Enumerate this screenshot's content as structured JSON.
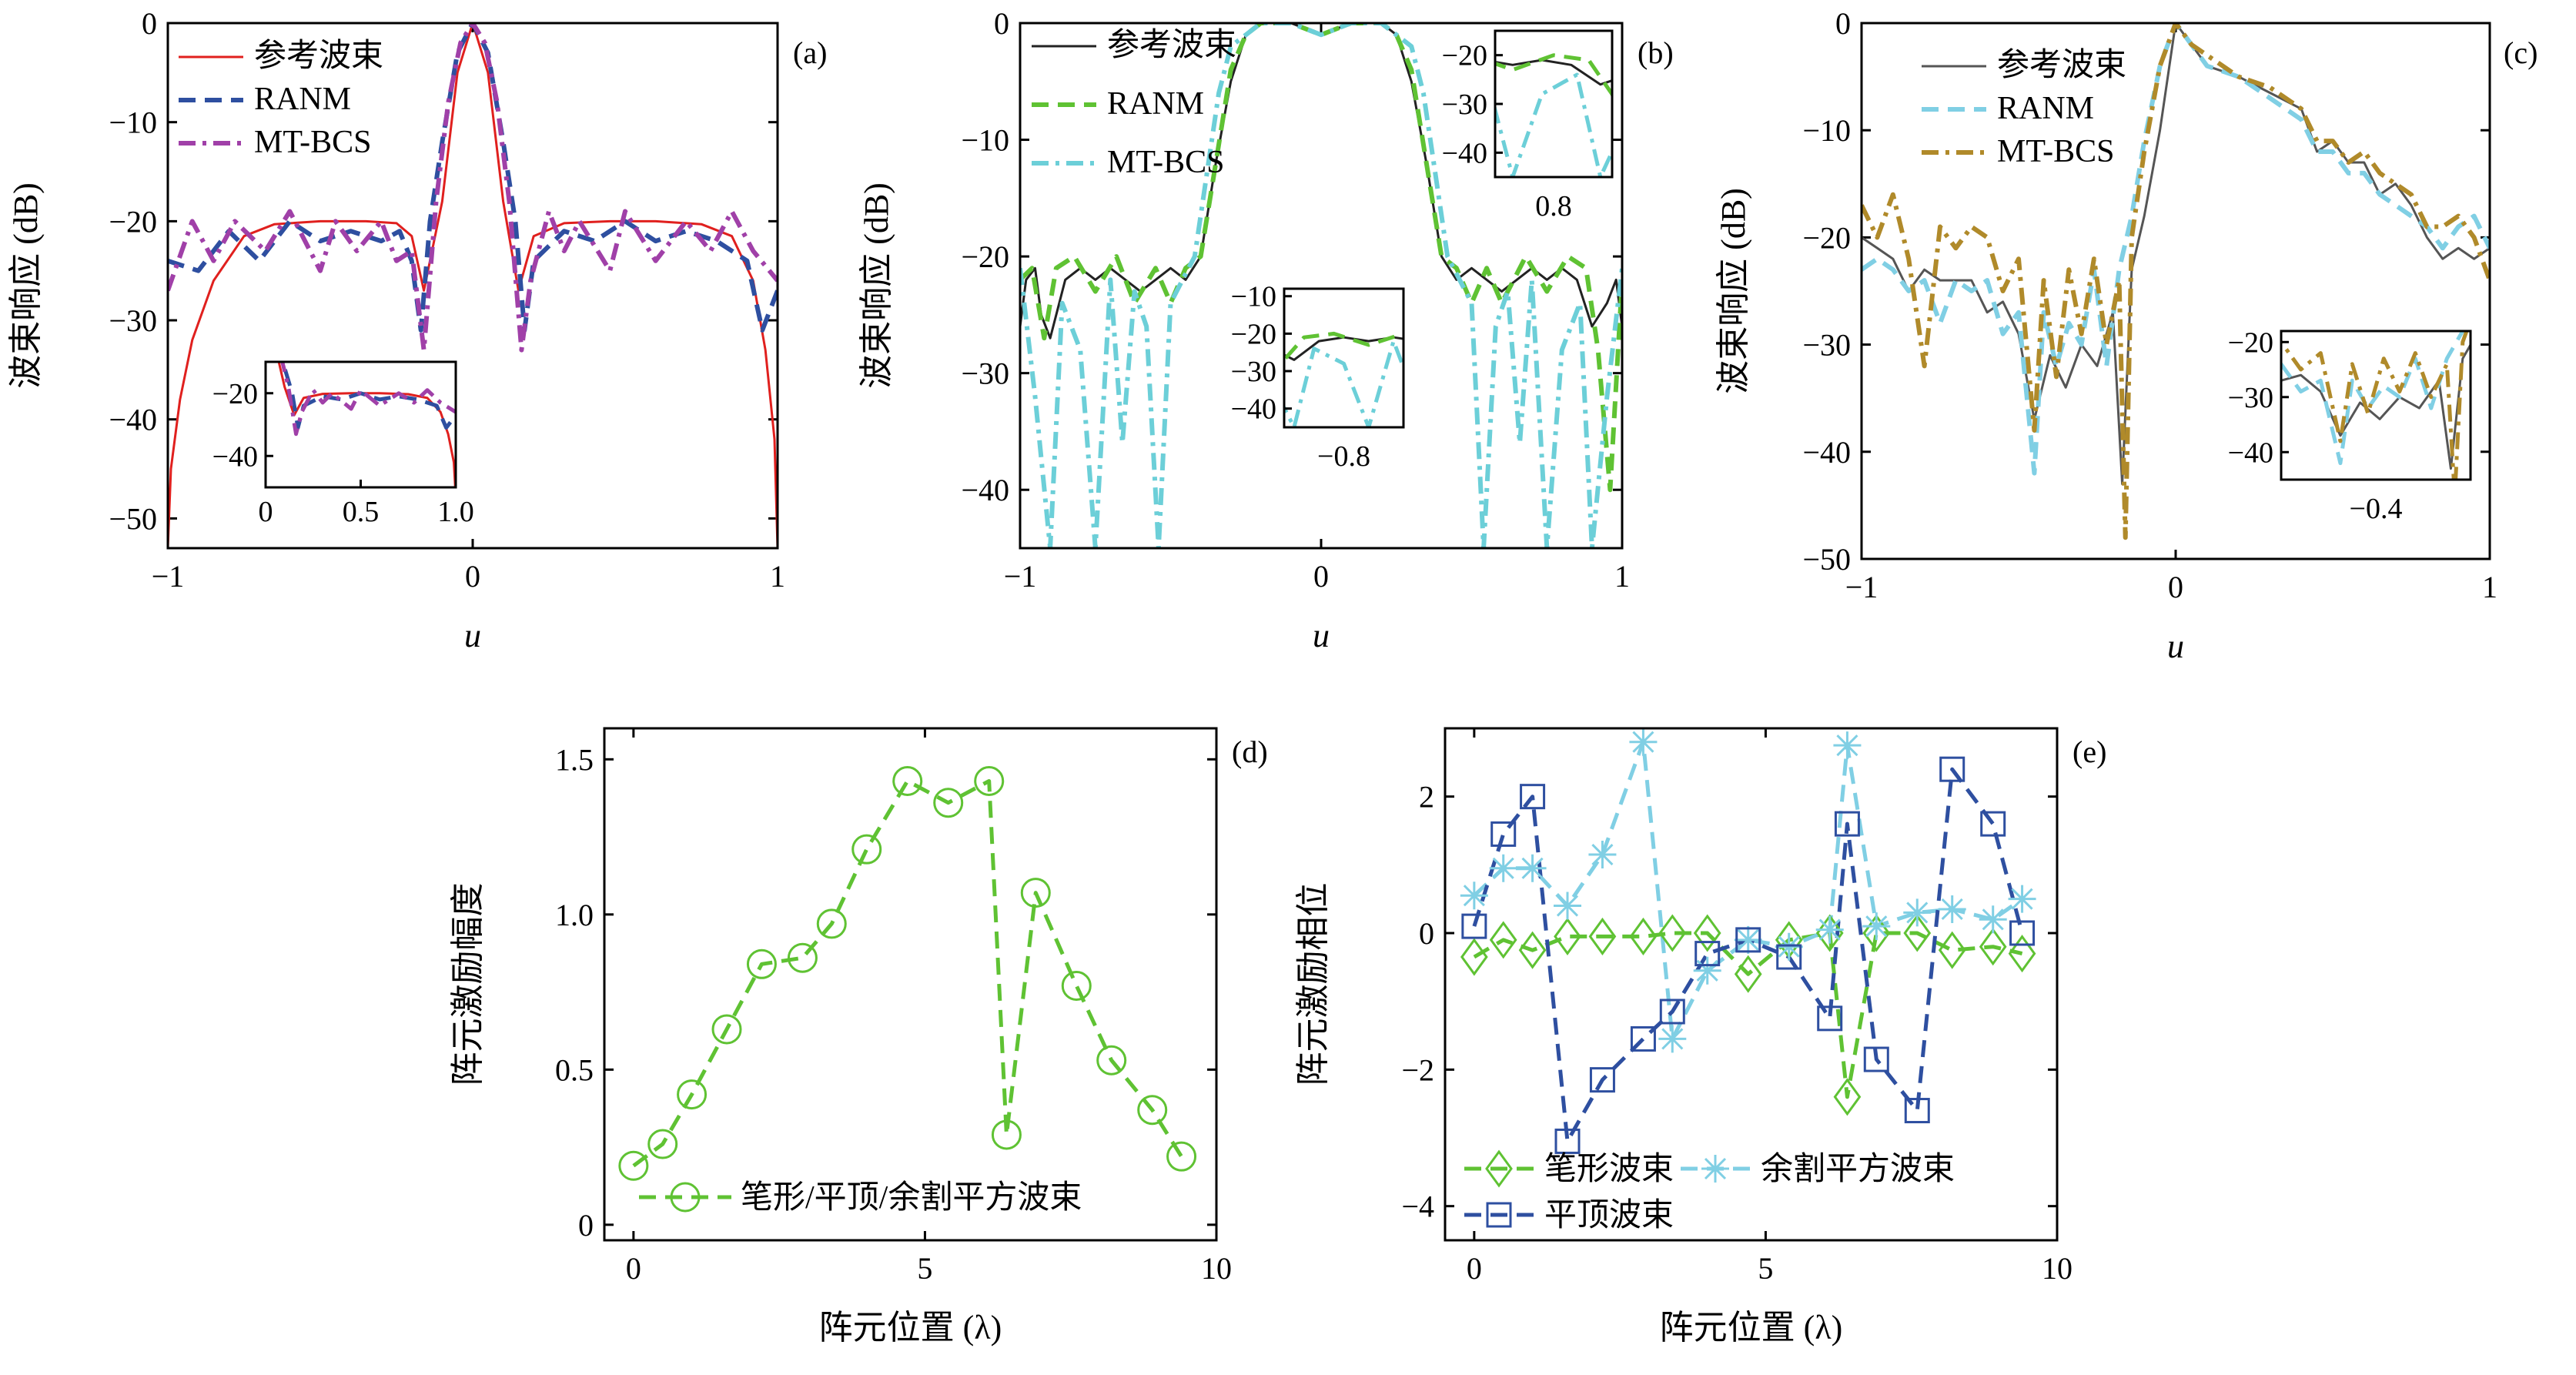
{
  "figure": {
    "panels": [
      "(a)",
      "(b)",
      "(c)",
      "(d)",
      "(e)"
    ]
  },
  "chart_data": [
    {
      "type": "line",
      "panel": "(a)",
      "xlabel": "u",
      "ylabel": "波束响应 (dB)",
      "xlim": [
        -1,
        1
      ],
      "ylim": [
        -53,
        0
      ],
      "xticks": [
        -1,
        0,
        1
      ],
      "yticks": [
        0,
        -10,
        -20,
        -30,
        -40,
        -50
      ],
      "legend_position": "top-left",
      "series": [
        {
          "name": "参考波束",
          "color": "#e0201e",
          "style": "solid",
          "x": [
            -1,
            -0.99,
            -0.96,
            -0.92,
            -0.85,
            -0.75,
            -0.65,
            -0.5,
            -0.35,
            -0.25,
            -0.2,
            -0.16,
            -0.1,
            -0.05,
            0,
            0.05,
            0.1,
            0.15,
            0.2,
            0.3,
            0.45,
            0.6,
            0.75,
            0.85,
            0.92,
            0.96,
            0.99,
            1
          ],
          "y": [
            -53,
            -45,
            -38,
            -32,
            -26,
            -21.5,
            -20.3,
            -20,
            -20,
            -20.2,
            -21.5,
            -27,
            -18,
            -5,
            0,
            -5,
            -18,
            -27,
            -21.5,
            -20.2,
            -20,
            -20,
            -20.3,
            -21.5,
            -26,
            -33,
            -42,
            -53
          ]
        },
        {
          "name": "RANM",
          "color": "#2e4fa0",
          "style": "dashed",
          "x": [
            -1,
            -0.9,
            -0.8,
            -0.7,
            -0.6,
            -0.5,
            -0.4,
            -0.3,
            -0.24,
            -0.2,
            -0.17,
            -0.14,
            -0.1,
            -0.05,
            0,
            0.05,
            0.1,
            0.14,
            0.17,
            0.2,
            0.3,
            0.4,
            0.5,
            0.6,
            0.7,
            0.8,
            0.9,
            0.95,
            1
          ],
          "y": [
            -24,
            -25,
            -21,
            -24,
            -20,
            -22,
            -21,
            -22,
            -21,
            -24,
            -31,
            -20,
            -12,
            -3,
            0,
            -3,
            -12,
            -20,
            -31,
            -24,
            -21,
            -22,
            -20,
            -22,
            -21,
            -22,
            -24,
            -31,
            -27
          ]
        },
        {
          "name": "MT-BCS",
          "color": "#a040a8",
          "style": "dashdot",
          "x": [
            -1,
            -0.92,
            -0.85,
            -0.78,
            -0.68,
            -0.6,
            -0.5,
            -0.45,
            -0.38,
            -0.3,
            -0.25,
            -0.2,
            -0.16,
            -0.12,
            -0.08,
            -0.04,
            0,
            0.04,
            0.08,
            0.12,
            0.16,
            0.19,
            0.25,
            0.3,
            0.35,
            0.45,
            0.5,
            0.6,
            0.7,
            0.78,
            0.85,
            0.92,
            1
          ],
          "y": [
            -27,
            -20,
            -24,
            -20,
            -23,
            -19,
            -25,
            -20,
            -23,
            -20,
            -24,
            -23,
            -33,
            -18,
            -8,
            -2,
            0,
            -2,
            -8,
            -18,
            -33,
            -26,
            -19,
            -23,
            -20,
            -25,
            -19,
            -24,
            -20,
            -23,
            -19,
            -23,
            -26
          ]
        }
      ],
      "inset": {
        "xlim": [
          0,
          1
        ],
        "ylim": [
          -50,
          -10
        ],
        "xticks": [
          0,
          0.5,
          1.0
        ],
        "yticks": [
          -20,
          -40
        ]
      }
    },
    {
      "type": "line",
      "panel": "(b)",
      "xlabel": "u",
      "ylabel": "波束响应 (dB)",
      "xlim": [
        -1,
        1
      ],
      "ylim": [
        -45,
        0
      ],
      "xticks": [
        -1,
        0,
        1
      ],
      "yticks": [
        0,
        -10,
        -20,
        -30,
        -40
      ],
      "legend_position": "top-left",
      "series": [
        {
          "name": "参考波束",
          "color": "#222222",
          "style": "solid",
          "x": [
            -1,
            -0.98,
            -0.95,
            -0.93,
            -0.9,
            -0.85,
            -0.8,
            -0.75,
            -0.7,
            -0.65,
            -0.6,
            -0.55,
            -0.5,
            -0.45,
            -0.4,
            -0.35,
            -0.3,
            -0.25,
            -0.2,
            -0.1,
            0,
            0.1,
            0.2,
            0.25,
            0.3,
            0.35,
            0.4,
            0.45,
            0.5,
            0.55,
            0.6,
            0.65,
            0.7,
            0.75,
            0.8,
            0.85,
            0.9,
            0.95,
            0.98,
            1
          ],
          "y": [
            -26,
            -22,
            -21,
            -25,
            -27,
            -22,
            -21,
            -22,
            -21,
            -22,
            -23,
            -22,
            -21,
            -22,
            -20,
            -12,
            -5,
            -1,
            0,
            0,
            -1,
            0,
            0,
            -1,
            -5,
            -12,
            -20,
            -22,
            -21,
            -22,
            -23,
            -22,
            -21,
            -22,
            -21,
            -22,
            -26,
            -24,
            -22,
            -26
          ]
        },
        {
          "name": "RANM",
          "color": "#5fc233",
          "style": "dashed",
          "x": [
            -1,
            -0.96,
            -0.92,
            -0.88,
            -0.82,
            -0.75,
            -0.68,
            -0.62,
            -0.55,
            -0.5,
            -0.45,
            -0.4,
            -0.35,
            -0.3,
            -0.25,
            -0.2,
            -0.1,
            0,
            0.1,
            0.2,
            0.25,
            0.3,
            0.35,
            0.4,
            0.45,
            0.5,
            0.55,
            0.6,
            0.68,
            0.75,
            0.82,
            0.88,
            0.92,
            0.96,
            1
          ],
          "y": [
            -22,
            -21,
            -27,
            -21,
            -20,
            -23,
            -20,
            -24,
            -21,
            -24,
            -21,
            -20,
            -12,
            -4,
            -1,
            0,
            0,
            -1,
            0,
            0,
            -1,
            -4,
            -12,
            -20,
            -21,
            -24,
            -21,
            -24,
            -20,
            -23,
            -20,
            -21,
            -28,
            -40,
            -22
          ]
        },
        {
          "name": "MT-BCS",
          "color": "#6ccfd8",
          "style": "dashdot",
          "x": [
            -1,
            -0.95,
            -0.9,
            -0.86,
            -0.8,
            -0.75,
            -0.7,
            -0.66,
            -0.62,
            -0.58,
            -0.54,
            -0.5,
            -0.46,
            -0.42,
            -0.38,
            -0.34,
            -0.3,
            -0.25,
            -0.2,
            -0.1,
            0,
            0.1,
            0.2,
            0.25,
            0.3,
            0.34,
            0.38,
            0.42,
            0.46,
            0.5,
            0.54,
            0.58,
            0.62,
            0.66,
            0.7,
            0.75,
            0.8,
            0.86,
            0.9,
            0.95,
            1
          ],
          "y": [
            -21,
            -32,
            -45,
            -24,
            -28,
            -45,
            -22,
            -36,
            -23,
            -26,
            -45,
            -24,
            -22,
            -20,
            -13,
            -6,
            -2,
            -1,
            0,
            0,
            -1,
            0,
            0,
            -1,
            -2,
            -6,
            -13,
            -20,
            -22,
            -24,
            -45,
            -26,
            -23,
            -36,
            -22,
            -45,
            -28,
            -24,
            -45,
            -32,
            -21
          ]
        }
      ],
      "insets": [
        {
          "position": "top-right",
          "label": "0.8",
          "yticks": [
            -20,
            -30,
            -40
          ]
        },
        {
          "position": "center",
          "label": "−0.8",
          "yticks": [
            -10,
            -20,
            -30,
            -40
          ]
        }
      ]
    },
    {
      "type": "line",
      "panel": "(c)",
      "xlabel": "u",
      "ylabel": "波束响应 (dB)",
      "xlim": [
        -1,
        1
      ],
      "ylim": [
        -50,
        0
      ],
      "xticks": [
        -1,
        0,
        1
      ],
      "yticks": [
        0,
        -10,
        -20,
        -30,
        -40,
        -50
      ],
      "legend_position": "top-left",
      "series": [
        {
          "name": "参考波束",
          "color": "#555555",
          "style": "solid",
          "x": [
            -1,
            -0.95,
            -0.9,
            -0.85,
            -0.8,
            -0.75,
            -0.7,
            -0.65,
            -0.6,
            -0.55,
            -0.5,
            -0.45,
            -0.4,
            -0.35,
            -0.3,
            -0.25,
            -0.2,
            -0.17,
            -0.14,
            -0.1,
            -0.05,
            0,
            0.05,
            0.1,
            0.2,
            0.3,
            0.4,
            0.45,
            0.5,
            0.55,
            0.6,
            0.65,
            0.7,
            0.75,
            0.8,
            0.85,
            0.9,
            0.95,
            1
          ],
          "y": [
            -20,
            -21,
            -22,
            -25,
            -23,
            -24,
            -24,
            -24,
            -27,
            -26,
            -29,
            -37,
            -31,
            -34,
            -30,
            -32,
            -27,
            -43,
            -23,
            -18,
            -10,
            0,
            -2,
            -4,
            -5,
            -6.5,
            -8,
            -12,
            -11,
            -13,
            -13,
            -16,
            -15,
            -17,
            -20,
            -22,
            -21,
            -22,
            -21
          ]
        },
        {
          "name": "RANM",
          "color": "#80cfe4",
          "style": "dashed",
          "x": [
            -1,
            -0.95,
            -0.9,
            -0.85,
            -0.8,
            -0.75,
            -0.7,
            -0.65,
            -0.6,
            -0.55,
            -0.5,
            -0.45,
            -0.42,
            -0.38,
            -0.34,
            -0.3,
            -0.26,
            -0.22,
            -0.18,
            -0.14,
            -0.1,
            -0.05,
            0,
            0.05,
            0.1,
            0.2,
            0.3,
            0.4,
            0.45,
            0.5,
            0.55,
            0.6,
            0.65,
            0.7,
            0.75,
            0.8,
            0.85,
            0.9,
            0.95,
            1
          ],
          "y": [
            -23,
            -22,
            -23,
            -25,
            -24,
            -28,
            -24,
            -25,
            -24,
            -29,
            -27,
            -42,
            -27,
            -32,
            -28,
            -30,
            -23,
            -32,
            -23,
            -18,
            -11,
            -4,
            0,
            -2,
            -4,
            -5,
            -7,
            -9,
            -12,
            -12,
            -14,
            -14,
            -16,
            -17,
            -18,
            -19,
            -21,
            -19,
            -18,
            -21
          ]
        },
        {
          "name": "MT-BCS",
          "color": "#b08a2a",
          "style": "dashdot",
          "x": [
            -1,
            -0.95,
            -0.9,
            -0.85,
            -0.8,
            -0.75,
            -0.7,
            -0.65,
            -0.6,
            -0.55,
            -0.5,
            -0.45,
            -0.42,
            -0.38,
            -0.34,
            -0.3,
            -0.26,
            -0.22,
            -0.18,
            -0.16,
            -0.14,
            -0.1,
            -0.05,
            0,
            0.05,
            0.1,
            0.2,
            0.3,
            0.4,
            0.45,
            0.5,
            0.55,
            0.6,
            0.65,
            0.7,
            0.75,
            0.8,
            0.85,
            0.9,
            0.95,
            1
          ],
          "y": [
            -17,
            -20,
            -16,
            -22,
            -32,
            -19,
            -21,
            -19,
            -20,
            -25,
            -22,
            -38,
            -24,
            -33,
            -23,
            -29,
            -22,
            -30,
            -24,
            -48,
            -20,
            -12,
            -4,
            0,
            -2,
            -3,
            -5,
            -6,
            -8,
            -11,
            -11,
            -13,
            -12,
            -14,
            -15,
            -16,
            -19,
            -19,
            -18,
            -20,
            -24
          ]
        }
      ],
      "inset": {
        "label": "−0.4",
        "yticks": [
          -20,
          -30,
          -40
        ]
      }
    },
    {
      "type": "line",
      "panel": "(d)",
      "xlabel": "阵元位置 (λ)",
      "ylabel": "阵元激励幅度",
      "xlim": [
        -0.5,
        10
      ],
      "ylim": [
        -0.05,
        1.6
      ],
      "xticks": [
        0,
        5,
        10
      ],
      "yticks": [
        0,
        0.5,
        1.0,
        1.5
      ],
      "ytick_labels": [
        "0",
        "0.5",
        "1.0",
        "1.5"
      ],
      "legend_position": "bottom-right",
      "series": [
        {
          "name": "笔形/平顶/余割平方波束",
          "color": "#5fc233",
          "style": "dashed",
          "marker": "circle",
          "x": [
            0,
            0.5,
            1.0,
            1.6,
            2.2,
            2.9,
            3.4,
            4.0,
            4.7,
            5.4,
            6.1,
            6.4,
            6.9,
            7.6,
            8.2,
            8.9,
            9.4
          ],
          "y": [
            0.19,
            0.26,
            0.42,
            0.63,
            0.84,
            0.86,
            0.97,
            1.21,
            1.43,
            1.36,
            1.43,
            0.29,
            1.07,
            0.77,
            0.53,
            0.37,
            0.22
          ]
        }
      ]
    },
    {
      "type": "line",
      "panel": "(e)",
      "xlabel": "阵元位置 (λ)",
      "ylabel": "阵元激励相位",
      "xlim": [
        -0.5,
        10
      ],
      "ylim": [
        -4.5,
        3
      ],
      "xticks": [
        0,
        5,
        10
      ],
      "yticks": [
        2,
        0,
        -2,
        -4
      ],
      "legend_position": "bottom",
      "series": [
        {
          "name": "笔形波束",
          "color": "#5fc233",
          "style": "dashed",
          "marker": "diamond",
          "x": [
            0,
            0.5,
            1.0,
            1.6,
            2.2,
            2.9,
            3.4,
            4.0,
            4.7,
            5.4,
            6.1,
            6.4,
            6.9,
            7.6,
            8.2,
            8.9,
            9.4
          ],
          "y": [
            -0.35,
            -0.1,
            -0.25,
            -0.05,
            -0.05,
            -0.05,
            0.0,
            0.0,
            -0.6,
            -0.1,
            0.0,
            -2.4,
            0.0,
            0.0,
            -0.25,
            -0.2,
            -0.3
          ]
        },
        {
          "name": "余割平方波束",
          "color": "#80cfe4",
          "style": "dashed",
          "marker": "asterisk",
          "x": [
            0,
            0.5,
            1.0,
            1.6,
            2.2,
            2.9,
            3.4,
            4.0,
            4.7,
            5.4,
            6.1,
            6.4,
            6.9,
            7.6,
            8.2,
            8.9,
            9.4
          ],
          "y": [
            0.55,
            0.95,
            0.95,
            0.4,
            1.15,
            2.8,
            -1.55,
            -0.55,
            -0.1,
            -0.2,
            0.05,
            2.75,
            0.1,
            0.3,
            0.35,
            0.2,
            0.5
          ]
        },
        {
          "name": "平顶波束",
          "color": "#2e4fa0",
          "style": "dashed",
          "marker": "square",
          "x": [
            0,
            0.5,
            1.0,
            1.6,
            2.2,
            2.9,
            3.4,
            4.0,
            4.7,
            5.4,
            6.1,
            6.4,
            6.9,
            7.6,
            8.2,
            8.9,
            9.4
          ],
          "y": [
            0.1,
            1.45,
            2.0,
            -3.05,
            -2.15,
            -1.55,
            -1.15,
            -0.3,
            -0.1,
            -0.35,
            -1.25,
            1.6,
            -1.85,
            -2.6,
            2.4,
            1.6,
            0.0
          ]
        }
      ]
    }
  ]
}
